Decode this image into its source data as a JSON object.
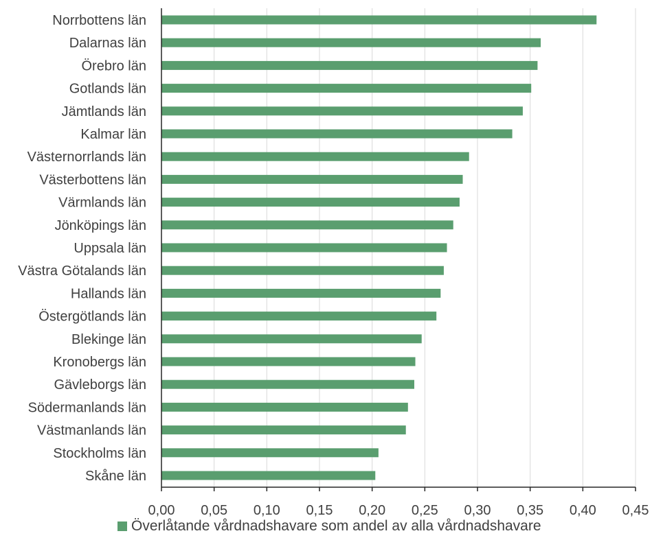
{
  "chart_data": {
    "type": "bar",
    "orientation": "horizontal",
    "categories": [
      "Norrbottens län",
      "Dalarnas län",
      "Örebro län",
      "Gotlands län",
      "Jämtlands län",
      "Kalmar län",
      "Västernorrlands län",
      "Västerbottens län",
      "Värmlands län",
      "Jönköpings län",
      "Uppsala län",
      "Västra Götalands län",
      "Hallands län",
      "Östergötlands län",
      "Blekinge län",
      "Kronobergs län",
      "Gävleborgs län",
      "Södermanlands län",
      "Västmanlands län",
      "Stockholms län",
      "Skåne län"
    ],
    "series": [
      {
        "name": "Överlåtande vårdnadshavare som andel av alla vårdnadshavare",
        "color": "#5a9e6f",
        "values": [
          0.413,
          0.36,
          0.357,
          0.351,
          0.343,
          0.333,
          0.292,
          0.286,
          0.283,
          0.277,
          0.271,
          0.268,
          0.265,
          0.261,
          0.247,
          0.241,
          0.24,
          0.234,
          0.232,
          0.206,
          0.203
        ]
      }
    ],
    "xlim": [
      0,
      0.45
    ],
    "xticks": [
      0,
      0.05,
      0.1,
      0.15,
      0.2,
      0.25,
      0.3,
      0.35,
      0.4,
      0.45
    ],
    "xtick_labels": [
      "0,00",
      "0,05",
      "0,10",
      "0,15",
      "0,20",
      "0,25",
      "0,30",
      "0,35",
      "0,40",
      "0,45"
    ],
    "title": "",
    "xlabel": "",
    "ylabel": "",
    "grid": "vertical",
    "legend_position": "bottom"
  },
  "legend": {
    "label": "Överlåtande vårdnadshavare som andel av alla vårdnadshavare"
  },
  "colors": {
    "bar": "#5a9e6f",
    "grid": "#d9d9d9",
    "axis": "#262626",
    "text": "#404040"
  }
}
